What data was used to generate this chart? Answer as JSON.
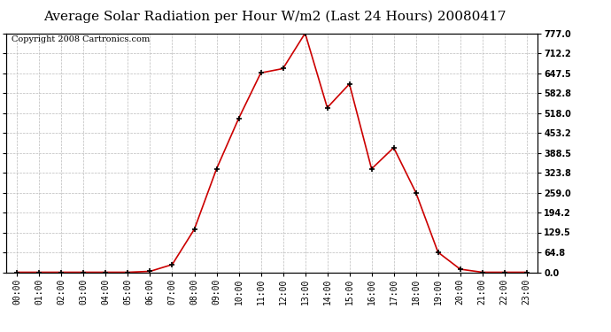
{
  "title": "Average Solar Radiation per Hour W/m2 (Last 24 Hours) 20080417",
  "copyright": "Copyright 2008 Cartronics.com",
  "hours": [
    "00:00",
    "01:00",
    "02:00",
    "03:00",
    "04:00",
    "05:00",
    "06:00",
    "07:00",
    "08:00",
    "09:00",
    "10:00",
    "11:00",
    "12:00",
    "13:00",
    "14:00",
    "15:00",
    "16:00",
    "17:00",
    "18:00",
    "19:00",
    "20:00",
    "21:00",
    "22:00",
    "23:00"
  ],
  "values": [
    0.0,
    0.0,
    0.0,
    0.0,
    0.0,
    0.0,
    3.0,
    25.0,
    140.0,
    336.0,
    500.0,
    648.0,
    662.0,
    777.0,
    535.0,
    612.0,
    336.0,
    405.0,
    259.0,
    65.0,
    10.0,
    0.0,
    0.0,
    0.0
  ],
  "ymax": 777.0,
  "yticks": [
    0.0,
    64.8,
    129.5,
    194.2,
    259.0,
    323.8,
    388.5,
    453.2,
    518.0,
    582.8,
    647.5,
    712.2,
    777.0
  ],
  "line_color": "#cc0000",
  "marker_color": "#000000",
  "bg_color": "#ffffff",
  "grid_color": "#bbbbbb",
  "title_fontsize": 11,
  "copyright_fontsize": 7
}
